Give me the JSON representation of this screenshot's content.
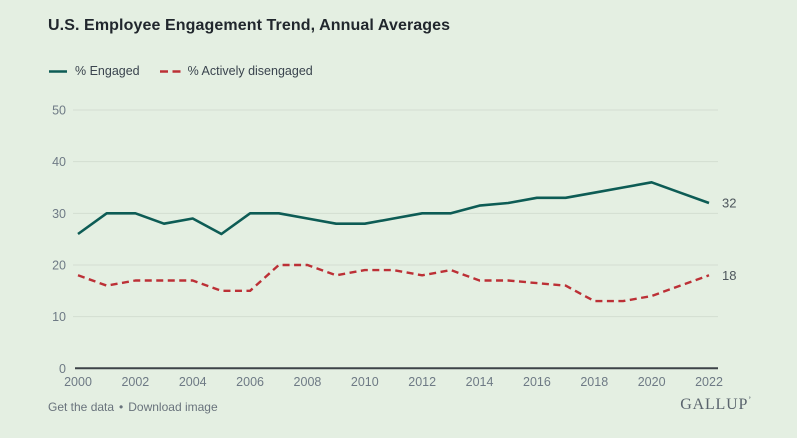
{
  "page": {
    "background": "#e4efe2"
  },
  "header": {
    "title": "U.S. Employee Engagement Trend, Annual Averages"
  },
  "legend": [
    {
      "label": "% Engaged",
      "color": "#0d5c55",
      "style": "solid"
    },
    {
      "label": "% Actively disengaged",
      "color": "#bc3036",
      "style": "dashed"
    }
  ],
  "chart_data": {
    "type": "line",
    "title": "U.S. Employee Engagement Trend, Annual Averages",
    "x": [
      2000,
      2001,
      2002,
      2003,
      2004,
      2005,
      2006,
      2007,
      2008,
      2009,
      2010,
      2011,
      2012,
      2013,
      2014,
      2015,
      2016,
      2017,
      2018,
      2019,
      2020,
      2021,
      2022
    ],
    "series": [
      {
        "name": "% Engaged",
        "color": "#0d5c55",
        "style": "solid",
        "values": [
          26,
          30,
          30,
          28,
          29,
          26,
          30,
          30,
          29,
          28,
          28,
          29,
          30,
          30,
          31.5,
          32,
          33,
          33,
          34,
          35,
          36,
          34,
          32
        ],
        "end_label": "32"
      },
      {
        "name": "% Actively disengaged",
        "color": "#bc3036",
        "style": "dashed",
        "values": [
          18,
          16,
          17,
          17,
          17,
          15,
          15,
          20,
          20,
          18,
          19,
          19,
          18,
          19,
          17,
          17,
          16.5,
          16,
          13,
          13,
          14,
          16,
          18
        ],
        "end_label": "18"
      }
    ],
    "ylim": [
      0,
      50
    ],
    "yticks": [
      0,
      10,
      20,
      30,
      40,
      50
    ],
    "xticks": [
      2000,
      2002,
      2004,
      2006,
      2008,
      2010,
      2012,
      2014,
      2016,
      2018,
      2020,
      2022
    ],
    "grid": true,
    "legend_position": "top-left"
  },
  "footer": {
    "links": [
      {
        "label": "Get the data"
      },
      {
        "label": "Download image"
      }
    ],
    "separator": "•",
    "brand": "GALLUP",
    "brand_mark": "’"
  }
}
